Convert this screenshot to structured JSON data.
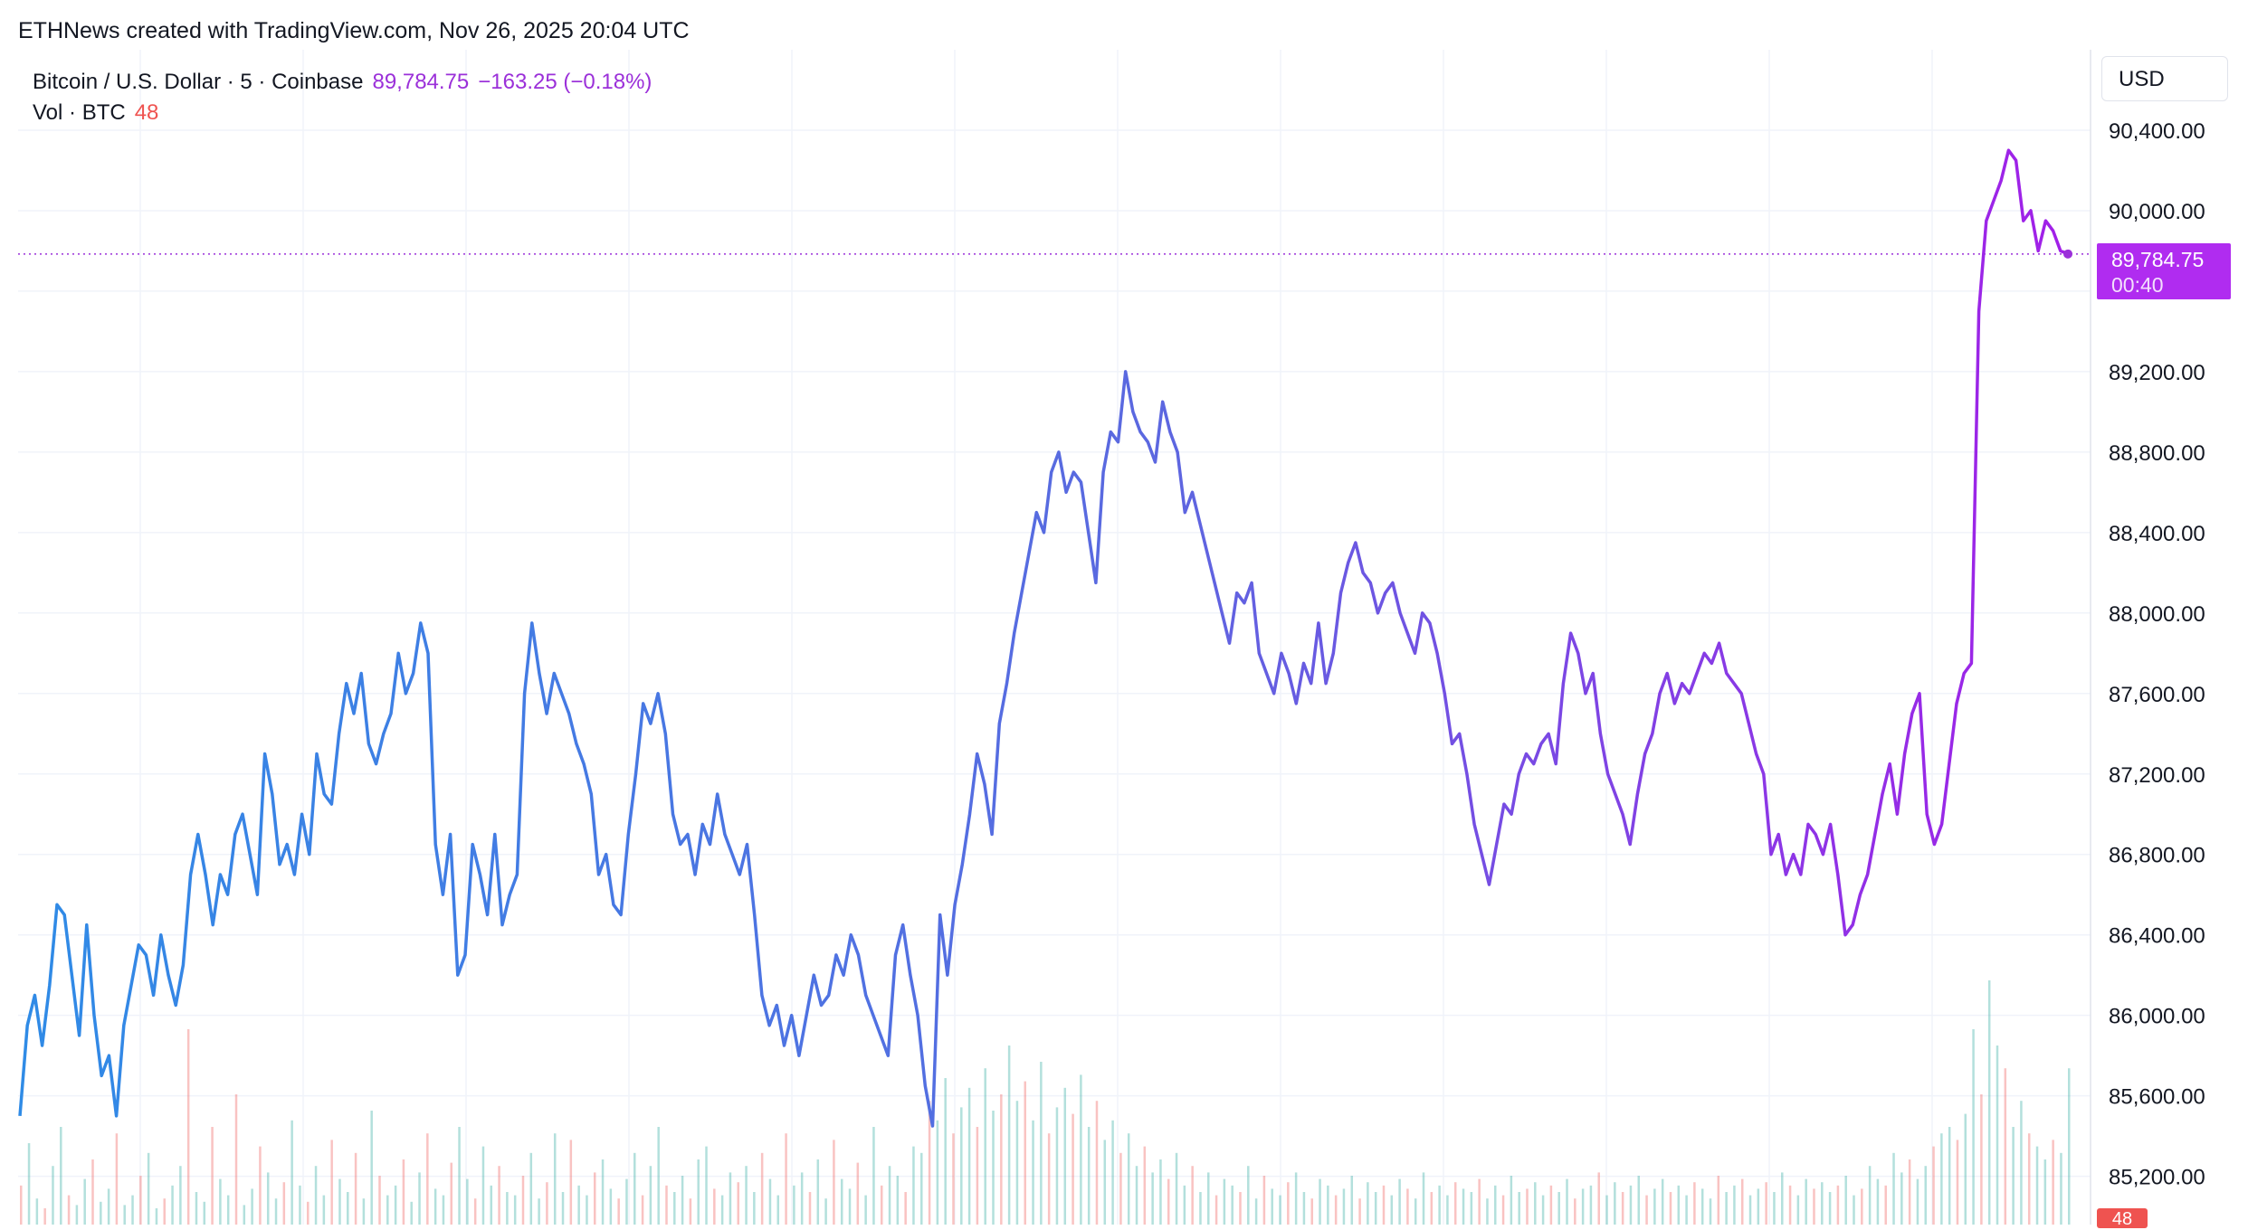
{
  "attribution": "ETHNews created with TradingView.com, Nov 26, 2025 20:04 UTC",
  "currency": "USD",
  "legend": {
    "symbol": "Bitcoin / U.S. Dollar · 5 · Coinbase",
    "last_price": "89,784.75",
    "change": "−163.25 (−0.18%)",
    "volume_label": "Vol · BTC",
    "volume_value": "48"
  },
  "last_label": {
    "price": "89,784.75",
    "countdown": "00:40"
  },
  "colors": {
    "line_start": "#2f8be6",
    "line_end": "#a21fe8",
    "grid": "#f0f3fa",
    "vol_up": "#26a69a",
    "vol_down": "#ef5350",
    "last_line": "#9b30d9"
  },
  "chart_data": {
    "type": "line",
    "title": "",
    "xlabel": "",
    "ylabel": "",
    "ylim": [
      84960,
      90800
    ],
    "y_ticks": [
      "90,400.00",
      "90,000.00",
      "89,200.00",
      "88,800.00",
      "88,400.00",
      "88,000.00",
      "87,600.00",
      "87,200.00",
      "86,800.00",
      "86,400.00",
      "86,000.00",
      "85,600.00",
      "85,200.00"
    ],
    "y_tick_values": [
      90400,
      90000,
      89200,
      88800,
      88400,
      88000,
      87600,
      87200,
      86800,
      86400,
      86000,
      85600,
      85200
    ],
    "grid": true,
    "last_value": 89784.75,
    "series": [
      {
        "values": [
          85500,
          85950,
          86100,
          85850,
          86150,
          86550,
          86500,
          86200,
          85900,
          86450,
          86000,
          85700,
          85800,
          85500,
          85950,
          86150,
          86350,
          86300,
          86100,
          86400,
          86200,
          86050,
          86250,
          86700,
          86900,
          86700,
          86450,
          86700,
          86600,
          86900,
          87000,
          86800,
          86600,
          87300,
          87100,
          86750,
          86850,
          86700,
          87000,
          86800,
          87300,
          87100,
          87050,
          87400,
          87650,
          87500,
          87700,
          87350,
          87250,
          87400,
          87500,
          87800,
          87600,
          87700,
          87950,
          87800,
          86850,
          86600,
          86900,
          86200,
          86300,
          86850,
          86700,
          86500,
          86900,
          86450,
          86600,
          86700,
          87600,
          87950,
          87700,
          87500,
          87700,
          87600,
          87500,
          87350,
          87250,
          87100,
          86700,
          86800,
          86550,
          86500,
          86900,
          87200,
          87550,
          87450,
          87600,
          87400,
          87000,
          86850,
          86900,
          86700,
          86950,
          86850,
          87100,
          86900,
          86800,
          86700,
          86850,
          86500,
          86100,
          85950,
          86050,
          85850,
          86000,
          85800,
          86000,
          86200,
          86050,
          86100,
          86300,
          86200,
          86400,
          86300,
          86100,
          86000,
          85900,
          85800,
          86300,
          86450,
          86200,
          86000,
          85650,
          85450,
          86500,
          86200,
          86550,
          86750,
          87000,
          87300,
          87150,
          86900,
          87450,
          87650,
          87900,
          88100,
          88300,
          88500,
          88400,
          88700,
          88800,
          88600,
          88700,
          88650,
          88400,
          88150,
          88700,
          88900,
          88850,
          89200,
          89000,
          88900,
          88850,
          88750,
          89050,
          88900,
          88800,
          88500,
          88600,
          88450,
          88300,
          88150,
          88000,
          87850,
          88100,
          88050,
          88150,
          87800,
          87700,
          87600,
          87800,
          87700,
          87550,
          87750,
          87650,
          87950,
          87650,
          87800,
          88100,
          88250,
          88350,
          88200,
          88150,
          88000,
          88100,
          88150,
          88000,
          87900,
          87800,
          88000,
          87950,
          87800,
          87600,
          87350,
          87400,
          87200,
          86950,
          86800,
          86650,
          86850,
          87050,
          87000,
          87200,
          87300,
          87250,
          87350,
          87400,
          87250,
          87650,
          87900,
          87800,
          87600,
          87700,
          87400,
          87200,
          87100,
          87000,
          86850,
          87100,
          87300,
          87400,
          87600,
          87700,
          87550,
          87650,
          87600,
          87700,
          87800,
          87750,
          87850,
          87700,
          87650,
          87600,
          87450,
          87300,
          87200,
          86800,
          86900,
          86700,
          86800,
          86700,
          86950,
          86900,
          86800,
          86950,
          86700,
          86400,
          86450,
          86600,
          86700,
          86900,
          87100,
          87250,
          87000,
          87300,
          87500,
          87600,
          87000,
          86850,
          86950,
          87250,
          87550,
          87700,
          87750,
          89500,
          89950,
          90050,
          90150,
          90300,
          90250,
          89950,
          90000,
          89800,
          89950,
          89900,
          89800,
          89784.75
        ]
      }
    ],
    "volume_series": {
      "name": "Vol · BTC",
      "last_value": 48,
      "values": [
        12,
        25,
        8,
        5,
        18,
        30,
        9,
        6,
        14,
        20,
        7,
        11,
        28,
        6,
        9,
        15,
        22,
        5,
        8,
        12,
        18,
        60,
        10,
        7,
        30,
        14,
        9,
        40,
        6,
        11,
        24,
        16,
        8,
        13,
        32,
        12,
        7,
        18,
        9,
        26,
        14,
        10,
        22,
        8,
        35,
        15,
        9,
        12,
        20,
        7,
        16,
        28,
        11,
        9,
        19,
        30,
        14,
        8,
        24,
        12,
        18,
        10,
        9,
        15,
        22,
        8,
        13,
        28,
        10,
        26,
        12,
        9,
        16,
        20,
        11,
        8,
        14,
        22,
        9,
        18,
        30,
        12,
        10,
        15,
        8,
        20,
        24,
        11,
        9,
        16,
        13,
        18,
        10,
        22,
        14,
        9,
        28,
        12,
        16,
        10,
        20,
        8,
        26,
        14,
        11,
        19,
        9,
        30,
        12,
        18,
        15,
        10,
        24,
        22,
        38,
        32,
        45,
        28,
        36,
        42,
        30,
        48,
        35,
        40,
        55,
        38,
        44,
        32,
        50,
        28,
        36,
        42,
        34,
        46,
        30,
        38,
        26,
        32,
        22,
        28,
        18,
        24,
        16,
        20,
        14,
        22,
        12,
        18,
        10,
        16,
        9,
        14,
        12,
        10,
        18,
        8,
        15,
        11,
        9,
        13,
        16,
        10,
        8,
        14,
        12,
        9,
        11,
        15,
        8,
        13,
        10,
        12,
        9,
        14,
        11,
        8,
        16,
        10,
        12,
        9,
        13,
        11,
        10,
        14,
        8,
        12,
        9,
        15,
        10,
        11,
        13,
        9,
        12,
        10,
        14,
        8,
        11,
        12,
        16,
        9,
        13,
        10,
        12,
        15,
        9,
        11,
        14,
        10,
        12,
        9,
        13,
        11,
        8,
        15,
        10,
        12,
        14,
        9,
        11,
        13,
        10,
        16,
        12,
        9,
        14,
        11,
        13,
        10,
        12,
        15,
        9,
        11,
        18,
        14,
        12,
        22,
        16,
        20,
        14,
        18,
        24,
        28,
        30,
        26,
        34,
        60,
        40,
        75,
        55,
        48,
        30,
        38,
        28,
        24,
        20,
        26,
        22,
        48
      ]
    }
  }
}
